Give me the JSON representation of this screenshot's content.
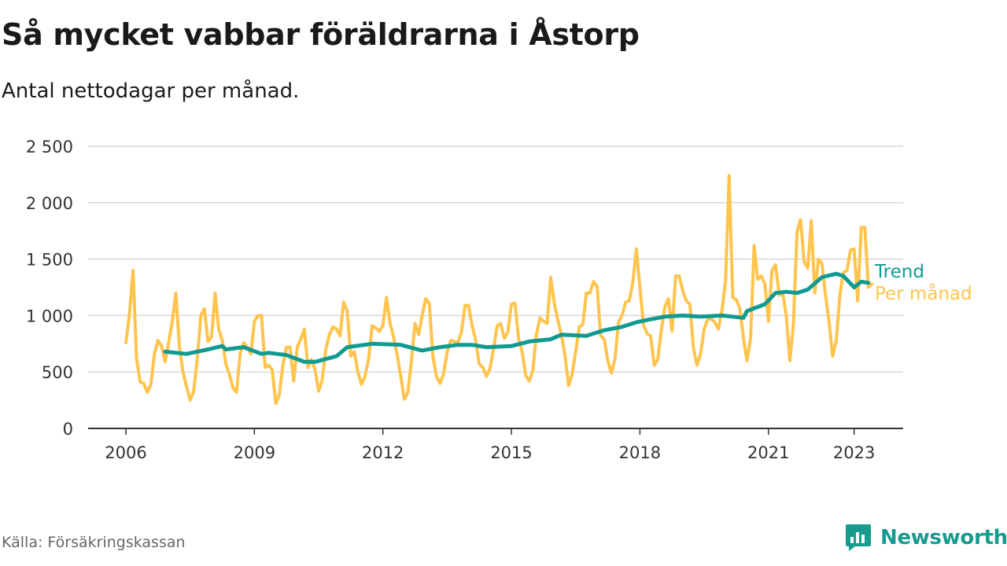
{
  "title": "Så mycket vabbar föräldrarna i Åstorp",
  "subtitle": "Antal nettodagar per månad.",
  "source": "Källa: Försäkringskassan",
  "brand": "Newsworthy",
  "colors": {
    "per_manad": "#ffc44d",
    "trend": "#119a8f",
    "grid": "#d9d9d9",
    "axis": "#333333",
    "brand": "#169b8f"
  },
  "chart_data": {
    "type": "line",
    "xlabel": "",
    "ylabel": "",
    "x_ticks": [
      "2006",
      "2009",
      "2012",
      "2015",
      "2018",
      "2021",
      "2023"
    ],
    "y_ticks": [
      "0",
      "500",
      "1 000",
      "1 500",
      "2 000",
      "2 500"
    ],
    "ylim": [
      0,
      2500
    ],
    "x_start": "2006-01",
    "x_end": "2023-05",
    "grid": true,
    "series": [
      {
        "name": "Per månad",
        "color": "#ffc44d",
        "values": [
          760,
          1010,
          1400,
          620,
          410,
          400,
          320,
          390,
          660,
          780,
          730,
          590,
          760,
          950,
          1200,
          720,
          500,
          370,
          250,
          330,
          620,
          1000,
          1060,
          770,
          810,
          1200,
          880,
          780,
          570,
          480,
          360,
          320,
          660,
          760,
          720,
          660,
          950,
          1000,
          1000,
          540,
          560,
          520,
          220,
          300,
          560,
          720,
          720,
          420,
          720,
          790,
          880,
          540,
          610,
          520,
          330,
          430,
          700,
          830,
          900,
          880,
          820,
          1120,
          1040,
          640,
          680,
          500,
          390,
          460,
          620,
          910,
          890,
          860,
          910,
          1160,
          930,
          810,
          650,
          460,
          260,
          320,
          600,
          930,
          830,
          1000,
          1150,
          1110,
          640,
          460,
          400,
          480,
          680,
          780,
          770,
          760,
          850,
          1090,
          1090,
          910,
          780,
          570,
          540,
          460,
          530,
          710,
          910,
          930,
          800,
          850,
          1100,
          1110,
          800,
          680,
          470,
          420,
          510,
          830,
          980,
          950,
          930,
          1340,
          1110,
          960,
          830,
          650,
          380,
          480,
          680,
          900,
          920,
          1200,
          1200,
          1300,
          1260,
          820,
          790,
          600,
          490,
          610,
          940,
          1000,
          1120,
          1130,
          1290,
          1590,
          1250,
          920,
          840,
          820,
          560,
          610,
          870,
          1080,
          1150,
          860,
          1350,
          1350,
          1220,
          1130,
          1100,
          710,
          560,
          660,
          880,
          970,
          970,
          940,
          880,
          1050,
          1310,
          2240,
          1160,
          1140,
          1060,
          800,
          600,
          800,
          1620,
          1320,
          1350,
          1280,
          950,
          1400,
          1450,
          1180,
          1200,
          1000,
          600,
          920,
          1740,
          1850,
          1480,
          1420,
          1840,
          1200,
          1500,
          1460,
          1180,
          940,
          640,
          780,
          1180,
          1380,
          1400,
          1580,
          1590,
          1130,
          1780,
          1780,
          1250,
          1280
        ]
      },
      {
        "name": "Trend",
        "color": "#119a8f",
        "values": [
          {
            "x": "2006-12",
            "y": 680
          },
          {
            "x": "2007-06",
            "y": 660
          },
          {
            "x": "2007-12",
            "y": 700
          },
          {
            "x": "2008-04",
            "y": 730
          },
          {
            "x": "2008-05",
            "y": 700
          },
          {
            "x": "2008-10",
            "y": 720
          },
          {
            "x": "2009-03",
            "y": 660
          },
          {
            "x": "2009-05",
            "y": 670
          },
          {
            "x": "2009-10",
            "y": 650
          },
          {
            "x": "2010-03",
            "y": 590
          },
          {
            "x": "2010-06",
            "y": 590
          },
          {
            "x": "2010-12",
            "y": 640
          },
          {
            "x": "2011-03",
            "y": 720
          },
          {
            "x": "2011-10",
            "y": 750
          },
          {
            "x": "2012-06",
            "y": 740
          },
          {
            "x": "2012-12",
            "y": 690
          },
          {
            "x": "2013-05",
            "y": 720
          },
          {
            "x": "2013-10",
            "y": 740
          },
          {
            "x": "2014-02",
            "y": 740
          },
          {
            "x": "2014-06",
            "y": 720
          },
          {
            "x": "2015-01",
            "y": 730
          },
          {
            "x": "2015-06",
            "y": 770
          },
          {
            "x": "2015-12",
            "y": 790
          },
          {
            "x": "2016-03",
            "y": 830
          },
          {
            "x": "2016-10",
            "y": 820
          },
          {
            "x": "2017-03",
            "y": 870
          },
          {
            "x": "2017-08",
            "y": 900
          },
          {
            "x": "2017-12",
            "y": 940
          },
          {
            "x": "2018-03",
            "y": 960
          },
          {
            "x": "2018-08",
            "y": 990
          },
          {
            "x": "2019-01",
            "y": 1000
          },
          {
            "x": "2019-06",
            "y": 990
          },
          {
            "x": "2019-12",
            "y": 1000
          },
          {
            "x": "2020-06",
            "y": 980
          },
          {
            "x": "2020-07",
            "y": 1040
          },
          {
            "x": "2020-12",
            "y": 1100
          },
          {
            "x": "2021-03",
            "y": 1200
          },
          {
            "x": "2021-06",
            "y": 1210
          },
          {
            "x": "2021-09",
            "y": 1200
          },
          {
            "x": "2021-12",
            "y": 1230
          },
          {
            "x": "2022-04",
            "y": 1340
          },
          {
            "x": "2022-08",
            "y": 1370
          },
          {
            "x": "2022-10",
            "y": 1350
          },
          {
            "x": "2023-01",
            "y": 1250
          },
          {
            "x": "2023-03",
            "y": 1300
          },
          {
            "x": "2023-05",
            "y": 1290
          }
        ]
      }
    ],
    "legend": [
      {
        "label": "Trend",
        "series": "Trend"
      },
      {
        "label": "Per månad",
        "series": "Per månad"
      }
    ],
    "legend_position": "right"
  }
}
